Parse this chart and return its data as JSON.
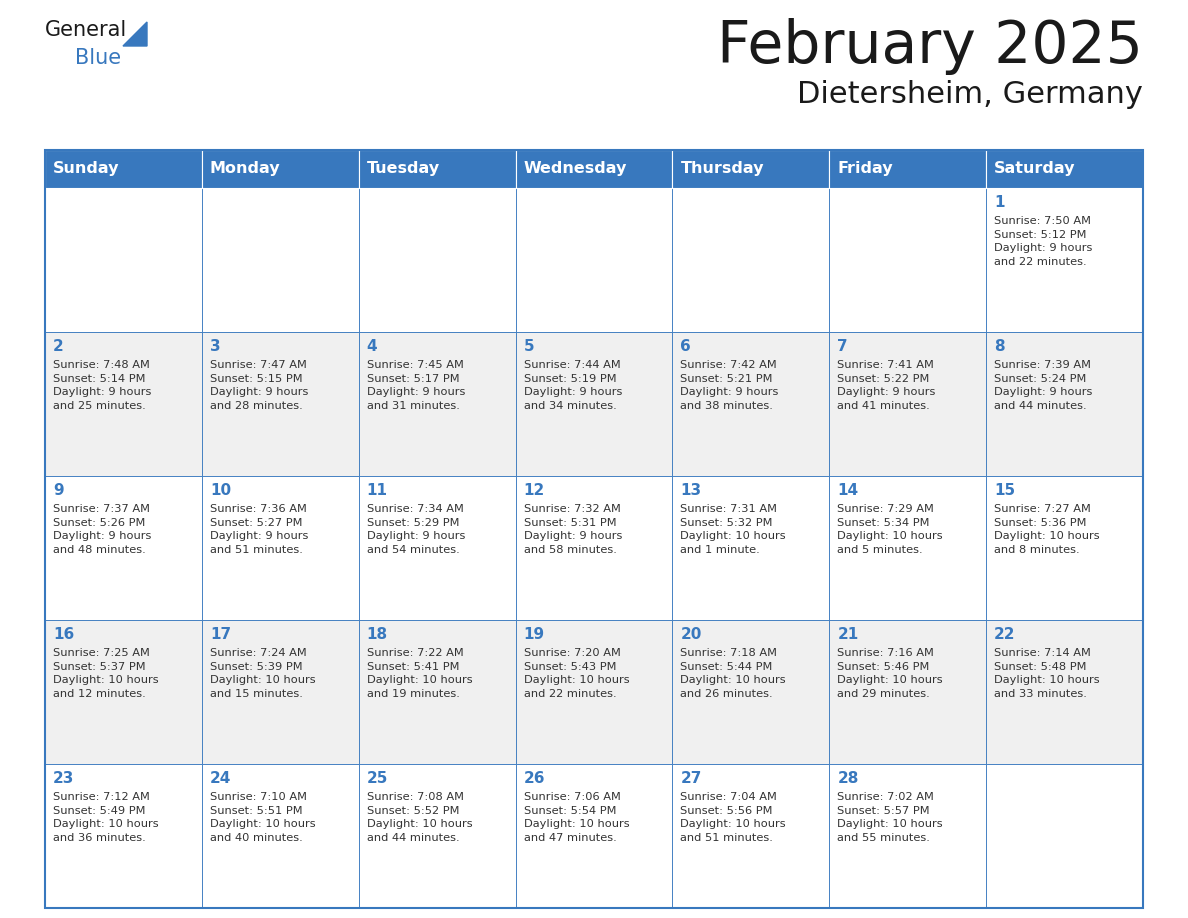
{
  "title": "February 2025",
  "subtitle": "Dietersheim, Germany",
  "header_bg_color": "#3878BE",
  "header_text_color": "#FFFFFF",
  "border_color": "#3878BE",
  "day_headers": [
    "Sunday",
    "Monday",
    "Tuesday",
    "Wednesday",
    "Thursday",
    "Friday",
    "Saturday"
  ],
  "title_color": "#1a1a1a",
  "subtitle_color": "#1a1a1a",
  "text_color": "#333333",
  "day_num_color": "#3878BE",
  "row_colors": [
    "#FFFFFF",
    "#F0F0F0",
    "#FFFFFF",
    "#F0F0F0",
    "#FFFFFF"
  ],
  "weeks": [
    [
      {
        "day": null,
        "info": ""
      },
      {
        "day": null,
        "info": ""
      },
      {
        "day": null,
        "info": ""
      },
      {
        "day": null,
        "info": ""
      },
      {
        "day": null,
        "info": ""
      },
      {
        "day": null,
        "info": ""
      },
      {
        "day": 1,
        "info": "Sunrise: 7:50 AM\nSunset: 5:12 PM\nDaylight: 9 hours\nand 22 minutes."
      }
    ],
    [
      {
        "day": 2,
        "info": "Sunrise: 7:48 AM\nSunset: 5:14 PM\nDaylight: 9 hours\nand 25 minutes."
      },
      {
        "day": 3,
        "info": "Sunrise: 7:47 AM\nSunset: 5:15 PM\nDaylight: 9 hours\nand 28 minutes."
      },
      {
        "day": 4,
        "info": "Sunrise: 7:45 AM\nSunset: 5:17 PM\nDaylight: 9 hours\nand 31 minutes."
      },
      {
        "day": 5,
        "info": "Sunrise: 7:44 AM\nSunset: 5:19 PM\nDaylight: 9 hours\nand 34 minutes."
      },
      {
        "day": 6,
        "info": "Sunrise: 7:42 AM\nSunset: 5:21 PM\nDaylight: 9 hours\nand 38 minutes."
      },
      {
        "day": 7,
        "info": "Sunrise: 7:41 AM\nSunset: 5:22 PM\nDaylight: 9 hours\nand 41 minutes."
      },
      {
        "day": 8,
        "info": "Sunrise: 7:39 AM\nSunset: 5:24 PM\nDaylight: 9 hours\nand 44 minutes."
      }
    ],
    [
      {
        "day": 9,
        "info": "Sunrise: 7:37 AM\nSunset: 5:26 PM\nDaylight: 9 hours\nand 48 minutes."
      },
      {
        "day": 10,
        "info": "Sunrise: 7:36 AM\nSunset: 5:27 PM\nDaylight: 9 hours\nand 51 minutes."
      },
      {
        "day": 11,
        "info": "Sunrise: 7:34 AM\nSunset: 5:29 PM\nDaylight: 9 hours\nand 54 minutes."
      },
      {
        "day": 12,
        "info": "Sunrise: 7:32 AM\nSunset: 5:31 PM\nDaylight: 9 hours\nand 58 minutes."
      },
      {
        "day": 13,
        "info": "Sunrise: 7:31 AM\nSunset: 5:32 PM\nDaylight: 10 hours\nand 1 minute."
      },
      {
        "day": 14,
        "info": "Sunrise: 7:29 AM\nSunset: 5:34 PM\nDaylight: 10 hours\nand 5 minutes."
      },
      {
        "day": 15,
        "info": "Sunrise: 7:27 AM\nSunset: 5:36 PM\nDaylight: 10 hours\nand 8 minutes."
      }
    ],
    [
      {
        "day": 16,
        "info": "Sunrise: 7:25 AM\nSunset: 5:37 PM\nDaylight: 10 hours\nand 12 minutes."
      },
      {
        "day": 17,
        "info": "Sunrise: 7:24 AM\nSunset: 5:39 PM\nDaylight: 10 hours\nand 15 minutes."
      },
      {
        "day": 18,
        "info": "Sunrise: 7:22 AM\nSunset: 5:41 PM\nDaylight: 10 hours\nand 19 minutes."
      },
      {
        "day": 19,
        "info": "Sunrise: 7:20 AM\nSunset: 5:43 PM\nDaylight: 10 hours\nand 22 minutes."
      },
      {
        "day": 20,
        "info": "Sunrise: 7:18 AM\nSunset: 5:44 PM\nDaylight: 10 hours\nand 26 minutes."
      },
      {
        "day": 21,
        "info": "Sunrise: 7:16 AM\nSunset: 5:46 PM\nDaylight: 10 hours\nand 29 minutes."
      },
      {
        "day": 22,
        "info": "Sunrise: 7:14 AM\nSunset: 5:48 PM\nDaylight: 10 hours\nand 33 minutes."
      }
    ],
    [
      {
        "day": 23,
        "info": "Sunrise: 7:12 AM\nSunset: 5:49 PM\nDaylight: 10 hours\nand 36 minutes."
      },
      {
        "day": 24,
        "info": "Sunrise: 7:10 AM\nSunset: 5:51 PM\nDaylight: 10 hours\nand 40 minutes."
      },
      {
        "day": 25,
        "info": "Sunrise: 7:08 AM\nSunset: 5:52 PM\nDaylight: 10 hours\nand 44 minutes."
      },
      {
        "day": 26,
        "info": "Sunrise: 7:06 AM\nSunset: 5:54 PM\nDaylight: 10 hours\nand 47 minutes."
      },
      {
        "day": 27,
        "info": "Sunrise: 7:04 AM\nSunset: 5:56 PM\nDaylight: 10 hours\nand 51 minutes."
      },
      {
        "day": 28,
        "info": "Sunrise: 7:02 AM\nSunset: 5:57 PM\nDaylight: 10 hours\nand 55 minutes."
      },
      {
        "day": null,
        "info": ""
      }
    ]
  ],
  "logo_general_color": "#1a1a1a",
  "logo_blue_color": "#3878BE",
  "figsize": [
    11.88,
    9.18
  ],
  "dpi": 100
}
